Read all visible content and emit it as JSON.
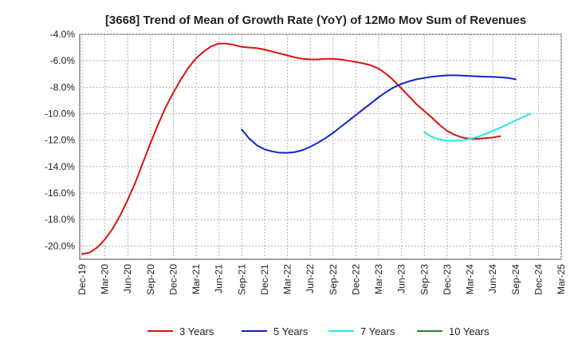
{
  "chart_data": {
    "type": "line",
    "title": "[3668]  Trend of Mean of Growth Rate (YoY) of 12Mo Mov Sum of Revenues",
    "xlabel": "",
    "ylabel": "",
    "ylim": [
      -21.0,
      -4.0
    ],
    "y_ticks": [
      -20.0,
      -18.0,
      -16.0,
      -14.0,
      -12.0,
      -10.0,
      -8.0,
      -6.0,
      -4.0
    ],
    "y_tick_labels": [
      "-20.0%",
      "-18.0%",
      "-16.0%",
      "-14.0%",
      "-12.0%",
      "-10.0%",
      "-8.0%",
      "-6.0%",
      "-4.0%"
    ],
    "x_ticks": [
      "Dec-19",
      "Mar-20",
      "Jun-20",
      "Sep-20",
      "Dec-20",
      "Mar-21",
      "Jun-21",
      "Sep-21",
      "Dec-21",
      "Mar-22",
      "Jun-22",
      "Sep-22",
      "Dec-22",
      "Mar-23",
      "Jun-23",
      "Sep-23",
      "Dec-23",
      "Mar-24",
      "Jun-24",
      "Sep-24",
      "Dec-24",
      "Mar-25"
    ],
    "grid": true,
    "legend_position": "bottom",
    "series": [
      {
        "name": "3 Years",
        "color": "#dd1111",
        "start_index": 0,
        "values": [
          -20.6,
          -20.5,
          -20.1,
          -19.5,
          -18.7,
          -17.7,
          -16.5,
          -15.2,
          -13.7,
          -12.2,
          -10.8,
          -9.5,
          -8.4,
          -7.4,
          -6.5,
          -5.8,
          -5.3,
          -4.9,
          -4.7,
          -4.7,
          -4.8,
          -4.95,
          -5.0,
          -5.05,
          -5.15,
          -5.3,
          -5.45,
          -5.6,
          -5.75,
          -5.85,
          -5.9,
          -5.9,
          -5.85,
          -5.85,
          -5.9,
          -6.0,
          -6.1,
          -6.2,
          -6.35,
          -6.6,
          -7.0,
          -7.5,
          -8.1,
          -8.7,
          -9.3,
          -9.8,
          -10.3,
          -10.85,
          -11.3,
          -11.6,
          -11.8,
          -11.9,
          -11.9,
          -11.85,
          -11.8,
          -11.7
        ]
      },
      {
        "name": "5 Years",
        "color": "#1122cc",
        "start_index": 21,
        "values": [
          -11.2,
          -11.9,
          -12.4,
          -12.7,
          -12.85,
          -12.95,
          -12.95,
          -12.9,
          -12.75,
          -12.5,
          -12.2,
          -11.85,
          -11.45,
          -11.0,
          -10.55,
          -10.1,
          -9.65,
          -9.2,
          -8.75,
          -8.35,
          -8.0,
          -7.75,
          -7.55,
          -7.4,
          -7.3,
          -7.2,
          -7.15,
          -7.1,
          -7.1,
          -7.12,
          -7.15,
          -7.18,
          -7.2,
          -7.22,
          -7.25,
          -7.3,
          -7.4
        ]
      },
      {
        "name": "7 Years",
        "color": "#22e8e8",
        "start_index": 45,
        "values": [
          -11.4,
          -11.75,
          -11.95,
          -12.05,
          -12.05,
          -12.0,
          -11.9,
          -11.75,
          -11.55,
          -11.3,
          -11.05,
          -10.8,
          -10.5,
          -10.25,
          -10.0
        ]
      },
      {
        "name": "10 Years",
        "color": "#228822",
        "start_index": 0,
        "values": []
      }
    ]
  }
}
